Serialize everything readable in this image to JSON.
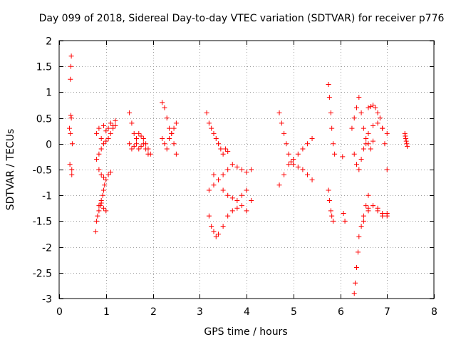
{
  "chart_data": {
    "type": "scatter",
    "title": "Day 099 of 2018, Sidereal Day-to-day VTEC variation (SDTVAR) for receiver p776",
    "xlabel": "GPS time / hours",
    "ylabel": "SDTVAR / TECUs",
    "xlim": [
      0,
      8
    ],
    "ylim": [
      -3,
      2
    ],
    "xticks": [
      0,
      1,
      2,
      3,
      4,
      5,
      6,
      7,
      8
    ],
    "yticks": [
      -3,
      -2.5,
      -2,
      -1.5,
      -1,
      -0.5,
      0,
      0.5,
      1,
      1.5,
      2
    ],
    "xtick_labels": [
      "0",
      "1",
      "2",
      "3",
      "4",
      "5",
      "6",
      "7",
      "8"
    ],
    "ytick_labels": [
      "-3",
      "-2.5",
      "-2",
      "-1.5",
      "-1",
      "-0.5",
      "0",
      "0.5",
      "1",
      "1.5",
      "2"
    ],
    "grid": true,
    "marker": "+",
    "marker_color": "#ff0000",
    "series": [
      {
        "name": "s1",
        "x": [
          0.22,
          0.23,
          0.24,
          0.25,
          0.26,
          0.27,
          0.28
        ],
        "y": [
          0.3,
          -0.4,
          1.25,
          0.55,
          1.7,
          -0.6,
          0.0
        ]
      },
      {
        "name": "s2",
        "x": [
          0.24,
          0.25,
          0.26,
          0.27
        ],
        "y": [
          0.2,
          1.5,
          0.5,
          -0.5
        ]
      },
      {
        "name": "s3",
        "x": [
          0.8,
          0.85,
          0.9,
          0.95,
          1.0,
          1.05,
          1.1,
          1.15,
          1.2
        ],
        "y": [
          0.2,
          0.3,
          0.1,
          0.35,
          0.25,
          0.3,
          0.4,
          0.35,
          0.45
        ]
      },
      {
        "name": "s4",
        "x": [
          0.8,
          0.85,
          0.9,
          0.95,
          1.0,
          1.05,
          1.1,
          1.15,
          1.2
        ],
        "y": [
          -0.3,
          -0.2,
          -0.1,
          0.0,
          0.05,
          0.1,
          0.2,
          0.3,
          0.35
        ]
      },
      {
        "name": "s5",
        "x": [
          0.78,
          0.8,
          0.82,
          0.85,
          0.88,
          0.9,
          0.93,
          0.95,
          0.97
        ],
        "y": [
          -1.7,
          -1.5,
          -1.4,
          -1.3,
          -1.2,
          -1.1,
          -1.0,
          -0.9,
          -0.8
        ]
      },
      {
        "name": "s6",
        "x": [
          0.85,
          0.9,
          0.95,
          1.0,
          1.05,
          1.1
        ],
        "y": [
          -0.5,
          -0.6,
          -0.65,
          -0.7,
          -0.6,
          -0.55
        ]
      },
      {
        "name": "s7",
        "x": [
          0.85,
          0.9,
          0.95,
          1.0
        ],
        "y": [
          -1.2,
          -1.15,
          -1.25,
          -1.3
        ]
      },
      {
        "name": "s8",
        "x": [
          1.5,
          1.55,
          1.6,
          1.65,
          1.7,
          1.75,
          1.8,
          1.85,
          1.9,
          1.95
        ],
        "y": [
          0.6,
          0.4,
          0.2,
          0.0,
          -0.1,
          -0.05,
          0.1,
          0.0,
          -0.1,
          -0.2
        ]
      },
      {
        "name": "s9",
        "x": [
          1.5,
          1.55,
          1.6,
          1.65,
          1.7,
          1.75,
          1.8,
          1.85,
          1.9
        ],
        "y": [
          0.0,
          -0.1,
          -0.05,
          0.1,
          0.2,
          0.15,
          0.0,
          -0.1,
          -0.2
        ]
      },
      {
        "name": "s10",
        "x": [
          2.2,
          2.25,
          2.3,
          2.35,
          2.4,
          2.45,
          2.5
        ],
        "y": [
          0.8,
          0.7,
          0.5,
          0.3,
          0.2,
          0.0,
          0.4
        ]
      },
      {
        "name": "s11",
        "x": [
          2.2,
          2.25,
          2.3,
          2.35,
          2.4,
          2.45,
          2.5
        ],
        "y": [
          0.1,
          0.0,
          -0.1,
          0.1,
          0.2,
          0.3,
          -0.2
        ]
      },
      {
        "name": "s12",
        "x": [
          3.15,
          3.2,
          3.25,
          3.3,
          3.35,
          3.4,
          3.45,
          3.5,
          3.55,
          3.6
        ],
        "y": [
          0.6,
          0.4,
          0.3,
          0.2,
          0.1,
          0.0,
          -0.1,
          -0.2,
          -0.1,
          -0.15
        ]
      },
      {
        "name": "s13",
        "x": [
          3.2,
          3.3,
          3.4,
          3.5,
          3.6,
          3.7,
          3.8,
          3.9,
          4.0,
          4.1
        ],
        "y": [
          -0.9,
          -0.8,
          -0.7,
          -0.6,
          -0.5,
          -0.4,
          -0.45,
          -0.5,
          -0.55,
          -0.5
        ]
      },
      {
        "name": "s14",
        "x": [
          3.2,
          3.25,
          3.3,
          3.35,
          3.4,
          3.5,
          3.6,
          3.7,
          3.8,
          3.9,
          4.0,
          4.1
        ],
        "y": [
          -1.4,
          -1.6,
          -1.7,
          -1.8,
          -1.75,
          -1.6,
          -1.4,
          -1.3,
          -1.25,
          -1.2,
          -1.3,
          -1.1
        ]
      },
      {
        "name": "s15",
        "x": [
          3.3,
          3.4,
          3.5,
          3.6,
          3.7,
          3.8,
          3.9,
          4.0
        ],
        "y": [
          -0.6,
          -0.7,
          -0.9,
          -1.0,
          -1.05,
          -1.1,
          -1.0,
          -0.9
        ]
      },
      {
        "name": "s16",
        "x": [
          4.7,
          4.75,
          4.8,
          4.85,
          4.9,
          4.95,
          5.0,
          5.1,
          5.2,
          5.3,
          5.4
        ],
        "y": [
          0.6,
          0.4,
          0.2,
          0.0,
          -0.2,
          -0.35,
          -0.4,
          -0.45,
          -0.5,
          -0.6,
          -0.7
        ]
      },
      {
        "name": "s17",
        "x": [
          4.7,
          4.8,
          4.9,
          5.0,
          5.1,
          5.2,
          5.3,
          5.4
        ],
        "y": [
          -0.8,
          -0.6,
          -0.4,
          -0.3,
          -0.2,
          -0.1,
          0.0,
          0.1
        ]
      },
      {
        "name": "s18",
        "x": [
          5.75,
          5.77,
          5.8,
          5.82,
          5.85,
          5.88
        ],
        "y": [
          1.15,
          0.9,
          0.6,
          0.3,
          0.0,
          -0.2
        ]
      },
      {
        "name": "s19",
        "x": [
          5.75,
          5.77,
          5.8,
          5.82,
          5.85
        ],
        "y": [
          -0.9,
          -1.1,
          -1.3,
          -1.4,
          -1.5
        ]
      },
      {
        "name": "s20",
        "x": [
          6.05,
          6.07,
          6.1
        ],
        "y": [
          -0.25,
          -1.35,
          -1.5
        ]
      },
      {
        "name": "s21",
        "x": [
          6.25,
          6.3,
          6.35,
          6.4,
          6.45,
          6.5,
          6.55,
          6.6,
          6.65,
          6.7
        ],
        "y": [
          0.3,
          0.5,
          0.7,
          0.9,
          0.6,
          0.3,
          0.1,
          0.0,
          -0.1,
          0.05
        ]
      },
      {
        "name": "s22",
        "x": [
          6.3,
          6.35,
          6.4,
          6.45,
          6.5,
          6.55,
          6.6,
          6.7,
          6.8,
          6.9,
          7.0
        ],
        "y": [
          -0.2,
          -0.4,
          -0.5,
          -0.3,
          -0.1,
          0.0,
          0.2,
          0.35,
          0.4,
          0.3,
          0.2
        ]
      },
      {
        "name": "s23",
        "x": [
          6.6,
          6.65,
          6.7,
          6.75,
          6.8,
          6.85,
          6.9,
          6.95,
          7.0
        ],
        "y": [
          0.7,
          0.72,
          0.75,
          0.7,
          0.6,
          0.5,
          0.3,
          0.0,
          -0.5
        ]
      },
      {
        "name": "s24",
        "x": [
          6.3,
          6.32,
          6.35,
          6.38,
          6.4,
          6.45,
          6.5,
          6.55,
          6.6
        ],
        "y": [
          -2.9,
          -2.7,
          -2.4,
          -2.1,
          -1.8,
          -1.6,
          -1.4,
          -1.2,
          -1.0
        ]
      },
      {
        "name": "s25",
        "x": [
          6.5,
          6.6,
          6.7,
          6.8,
          6.9,
          7.0
        ],
        "y": [
          -1.5,
          -1.3,
          -1.2,
          -1.25,
          -1.4,
          -1.35
        ]
      },
      {
        "name": "s26",
        "x": [
          6.6,
          6.7,
          6.8,
          6.9,
          7.0
        ],
        "y": [
          -1.25,
          -1.2,
          -1.3,
          -1.35,
          -1.4
        ]
      },
      {
        "name": "s27",
        "x": [
          7.38,
          7.39,
          7.4,
          7.41,
          7.42,
          7.43
        ],
        "y": [
          0.2,
          0.15,
          0.1,
          0.05,
          0.0,
          -0.05
        ]
      }
    ]
  }
}
